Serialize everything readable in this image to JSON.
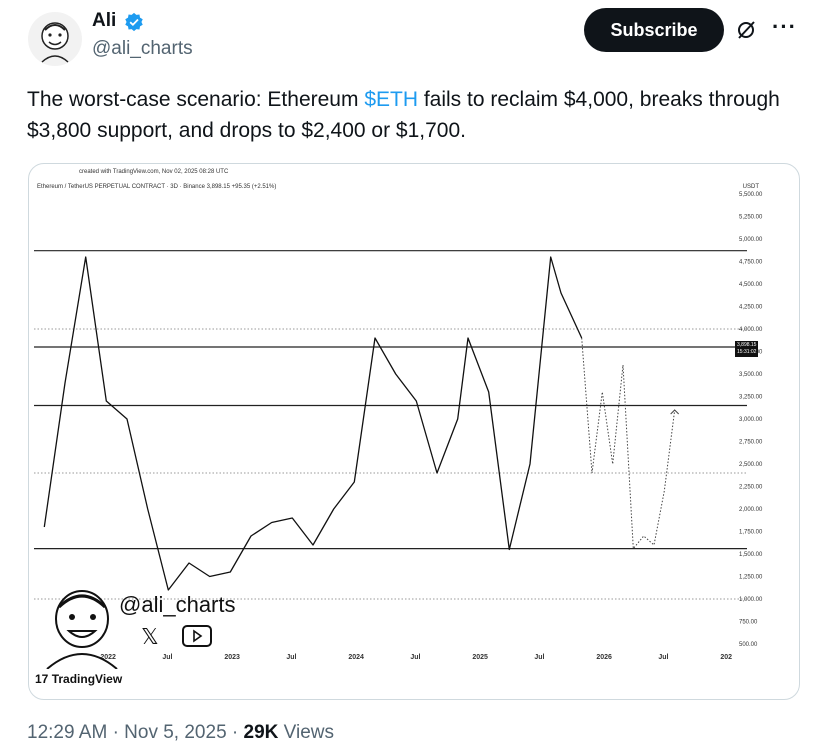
{
  "author": {
    "name": "Ali",
    "handle": "@ali_charts",
    "verified_color": "#1d9bf0"
  },
  "actions": {
    "subscribe_label": "Subscribe",
    "grok_icon": "grok-icon",
    "more_icon": "more-icon"
  },
  "tweet": {
    "text_before": "The worst-case scenario: Ethereum ",
    "cashtag": "$ETH",
    "text_after": " fails to reclaim $4,000, breaks through $3,800 support, and drops to $2,400 or $1,700."
  },
  "chart_image": {
    "created_text": "created with TradingView.com, Nov 02, 2025 08:28 UTC",
    "pair_text": "Ethereum / TetherUS PERPETUAL CONTRACT · 3D · Binance   3,898.15  +95.35 (+2.51%)",
    "currency": "USDT",
    "last_price": "3,898.15",
    "timer": "15:31:02",
    "watermark_handle": "@ali_charts",
    "watermark_x": "𝕏",
    "brand": "TradingView",
    "brand_mark": "17"
  },
  "chart_data": {
    "type": "line",
    "title": "",
    "y_axis_ticks": [
      "5,500.00",
      "5,250.00",
      "5,000.00",
      "4,750.00",
      "4,500.00",
      "4,250.00",
      "4,000.00",
      "3,750.00",
      "3,500.00",
      "3,250.00",
      "3,000.00",
      "2,750.00",
      "2,500.00",
      "2,250.00",
      "2,000.00",
      "1,750.00",
      "1,500.00",
      "1,250.00",
      "1,000.00",
      "750.00",
      "500.00"
    ],
    "x_axis_ticks": [
      "2022",
      "Jul",
      "2023",
      "Jul",
      "2024",
      "Jul",
      "2025",
      "Jul",
      "2026",
      "Jul",
      "202"
    ],
    "ylim": [
      500,
      5500
    ],
    "horizontal_levels": [
      4870,
      3800,
      3150,
      1560
    ],
    "dotted_levels": [
      4000,
      2400,
      1000
    ],
    "series": [
      {
        "x": [
          "2021-07",
          "2021-09",
          "2021-11",
          "2022-01",
          "2022-03",
          "2022-05",
          "2022-07",
          "2022-09",
          "2022-11",
          "2023-01",
          "2023-03",
          "2023-05",
          "2023-07",
          "2023-09",
          "2023-11",
          "2024-01",
          "2024-03",
          "2024-05",
          "2024-07",
          "2024-09",
          "2024-11",
          "2024-12",
          "2025-02",
          "2025-04",
          "2025-06",
          "2025-08",
          "2025-09",
          "2025-11"
        ],
        "values": [
          1800,
          3400,
          4800,
          3200,
          3000,
          2000,
          1100,
          1400,
          1250,
          1300,
          1700,
          1850,
          1900,
          1600,
          2000,
          2300,
          3900,
          3500,
          3200,
          2400,
          3000,
          3900,
          3300,
          1550,
          2500,
          4800,
          4400,
          3900
        ]
      }
    ],
    "projection": {
      "x": [
        "2025-11",
        "2025-12",
        "2026-01",
        "2026-02",
        "2026-03",
        "2026-04",
        "2026-05",
        "2026-06",
        "2026-07",
        "2026-08"
      ],
      "values": [
        3900,
        2400,
        3300,
        2500,
        3600,
        1560,
        1700,
        1600,
        2200,
        3100
      ]
    }
  },
  "footer": {
    "time": "12:29 AM",
    "date": "Nov 5, 2025",
    "views_count": "29K",
    "views_label": "Views"
  }
}
